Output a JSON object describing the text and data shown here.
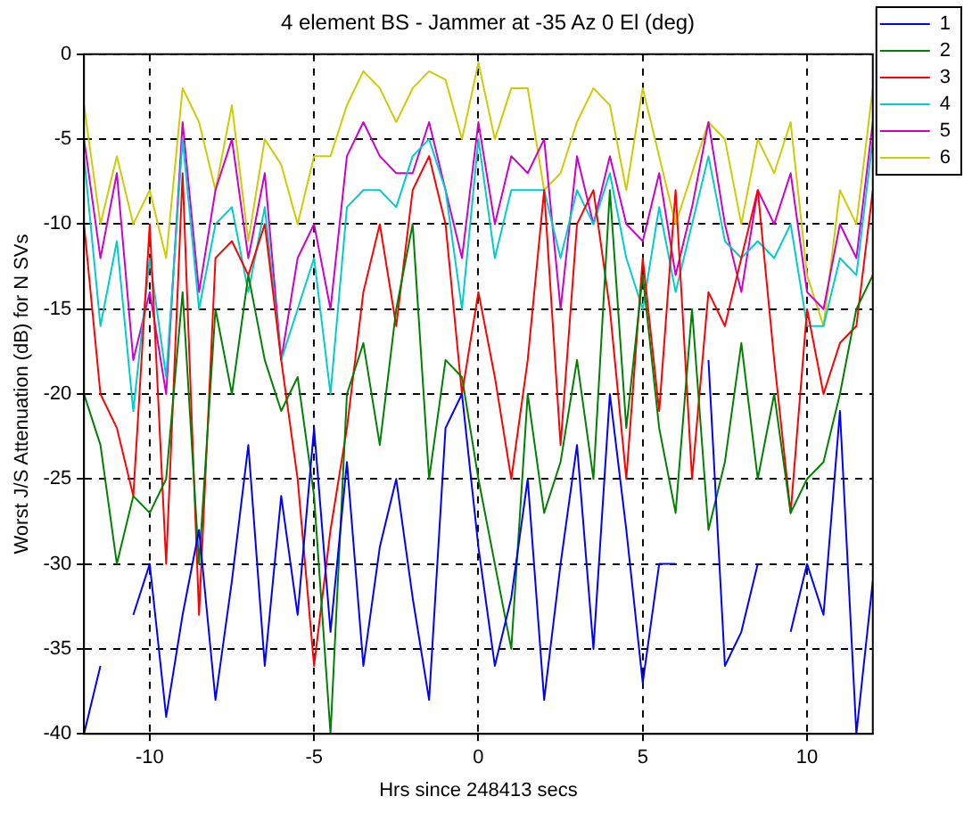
{
  "chart_data": {
    "type": "line",
    "title": "4 element BS - Jammer at -35 Az 0 El (deg)",
    "xlabel": "Hrs since 248413 secs",
    "ylabel": "Worst J/S Attenuation (dB) for N SVs",
    "x": [
      -12,
      -11.5,
      -11,
      -10.5,
      -10,
      -9.5,
      -9,
      -8.5,
      -8,
      -7.5,
      -7,
      -6.5,
      -6,
      -5.5,
      -5,
      -4.5,
      -4,
      -3.5,
      -3,
      -2.5,
      -2,
      -1.5,
      -1,
      -0.5,
      0,
      0.5,
      1,
      1.5,
      2,
      2.5,
      3,
      3.5,
      4,
      4.5,
      5,
      5.5,
      6,
      6.5,
      7,
      7.5,
      8,
      8.5,
      9,
      9.5,
      10,
      10.5,
      11,
      11.5,
      12
    ],
    "series": [
      {
        "name": "1",
        "color": "#0000ff",
        "values": [
          -40,
          -36,
          null,
          -33,
          -30,
          -39,
          -33,
          -28,
          -38,
          -31,
          -23,
          -36,
          -26,
          -33,
          -22,
          -34,
          -24,
          -36,
          -29,
          -25,
          -32,
          -38,
          -22,
          -20,
          -29,
          -36,
          -32,
          -25,
          -38,
          -30,
          -23,
          -35,
          -20,
          -28,
          -37,
          -30,
          -30,
          null,
          -18,
          -36,
          -34,
          -30,
          null,
          -34,
          -30,
          -33,
          -21,
          -40,
          -31
        ]
      },
      {
        "name": "2",
        "color": "#008000",
        "values": [
          -20,
          -23,
          -30,
          -26,
          -27,
          -25,
          -14,
          -30,
          -15,
          -20,
          -13,
          -18,
          -21,
          -19,
          -26,
          -40,
          -20,
          -17,
          -23,
          -15,
          -10,
          -25,
          -18,
          -19,
          -25,
          -30,
          -35,
          -20,
          -27,
          -24,
          -18,
          -25,
          -8,
          -22,
          -13,
          -22,
          -27,
          -15,
          -28,
          -24,
          -17,
          -25,
          -20,
          -27,
          -25,
          -24,
          -20,
          -15,
          -13
        ]
      },
      {
        "name": "3",
        "color": "#ff0000",
        "values": [
          -10,
          -20,
          -22,
          -26,
          -10,
          -30,
          -7,
          -33,
          -12,
          -11,
          -13,
          -10,
          -18,
          -25,
          -36,
          -28,
          -22,
          -14,
          -10,
          -16,
          -8,
          -6,
          -10,
          -20,
          -14,
          -19,
          -25,
          -18,
          -8,
          -23,
          -10,
          -8,
          -15,
          -25,
          -12,
          -21,
          -8,
          -25,
          -14,
          -16,
          -12,
          -8,
          -18,
          -27,
          -15,
          -20,
          -17,
          -16,
          -8
        ]
      },
      {
        "name": "4",
        "color": "#00cccc",
        "values": [
          -6,
          -16,
          -11,
          -21,
          -12,
          -19,
          -5,
          -15,
          -10,
          -9,
          -14,
          -9,
          -18,
          -15,
          -12,
          -20,
          -9,
          -8,
          -8,
          -9,
          -6,
          -5,
          -8,
          -15,
          -5,
          -12,
          -8,
          -8,
          -8,
          -12,
          -8,
          -10,
          -7,
          -12,
          -15,
          -9,
          -14,
          -10,
          -6,
          -11,
          -12,
          -11,
          -12,
          -10,
          -16,
          -16,
          -12,
          -13,
          -5
        ]
      },
      {
        "name": "5",
        "color": "#cc00cc",
        "values": [
          -5,
          -12,
          -7,
          -18,
          -14,
          -20,
          -4,
          -14,
          -8,
          -5,
          -12,
          -7,
          -18,
          -12,
          -10,
          -15,
          -6,
          -4,
          -6,
          -7,
          -7,
          -4,
          -8,
          -12,
          -4,
          -10,
          -6,
          -7,
          -5,
          -15,
          -6,
          -10,
          -6,
          -10,
          -11,
          -7,
          -13,
          -9,
          -4,
          -10,
          -14,
          -8,
          -10,
          -7,
          -14,
          -15,
          -10,
          -12,
          -4
        ]
      },
      {
        "name": "6",
        "color": "#cccc00",
        "values": [
          -3,
          -10,
          -6,
          -10,
          -8,
          -12,
          -2,
          -4,
          -8,
          -3,
          -11,
          -5,
          -6.5,
          -10,
          -6,
          -6,
          -3,
          -1,
          -2,
          -4,
          -2,
          -1,
          -1.5,
          -5,
          -0.5,
          -5,
          -2,
          -2,
          -8,
          -7,
          -4,
          -2,
          -3,
          -8,
          -2,
          -6,
          -10,
          -7,
          -4,
          -5,
          -10,
          -5,
          -7,
          -4,
          -13,
          -16,
          -8,
          -10,
          -2
        ]
      }
    ],
    "xlim": [
      -12,
      12
    ],
    "xticks": [
      -10,
      -5,
      0,
      5,
      10
    ],
    "ylim": [
      -40,
      0
    ],
    "yticks": [
      -40,
      -35,
      -30,
      -25,
      -20,
      -15,
      -10,
      -5,
      0
    ],
    "grid": true,
    "legend": "top right",
    "marker": "none",
    "line_style": "solid"
  }
}
